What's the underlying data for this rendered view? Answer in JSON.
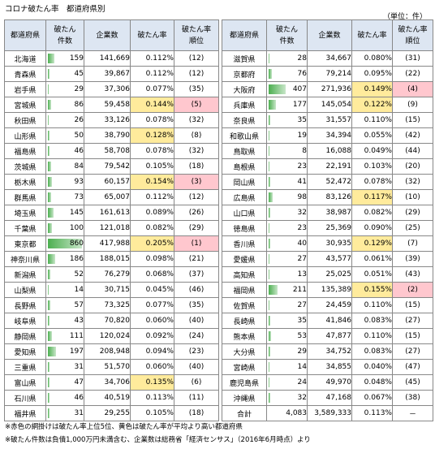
{
  "title": "コロナ破たん率　都道府県別",
  "unit": "（単位：件）",
  "headers": {
    "pref": "都道府県",
    "count_l1": "破たん",
    "count_l2": "件数",
    "companies": "企業数",
    "rate": "破たん率",
    "rank_l1": "破たん率",
    "rank_l2": "順位"
  },
  "colors": {
    "yellow": "#ffeb9c",
    "pink": "#ffc7ce",
    "header": "#dde6f2",
    "bar": "#4caf50"
  },
  "left": [
    {
      "pref": "北海道",
      "count": "159",
      "cnum": 159,
      "companies": "141,669",
      "rate": "0.112%",
      "rank": "(12)",
      "hl": ""
    },
    {
      "pref": "青森県",
      "count": "45",
      "cnum": 45,
      "companies": "39,867",
      "rate": "0.112%",
      "rank": "(12)",
      "hl": ""
    },
    {
      "pref": "岩手県",
      "count": "29",
      "cnum": 29,
      "companies": "37,306",
      "rate": "0.077%",
      "rank": "(35)",
      "hl": ""
    },
    {
      "pref": "宮城県",
      "count": "86",
      "cnum": 86,
      "companies": "59,458",
      "rate": "0.144%",
      "rank": "(5)",
      "hl": "yk"
    },
    {
      "pref": "秋田県",
      "count": "26",
      "cnum": 26,
      "companies": "33,126",
      "rate": "0.078%",
      "rank": "(32)",
      "hl": ""
    },
    {
      "pref": "山形県",
      "count": "50",
      "cnum": 50,
      "companies": "38,790",
      "rate": "0.128%",
      "rank": "(8)",
      "hl": "y"
    },
    {
      "pref": "福島県",
      "count": "46",
      "cnum": 46,
      "companies": "58,708",
      "rate": "0.078%",
      "rank": "(32)",
      "hl": ""
    },
    {
      "pref": "茨城県",
      "count": "84",
      "cnum": 84,
      "companies": "79,542",
      "rate": "0.105%",
      "rank": "(18)",
      "hl": ""
    },
    {
      "pref": "栃木県",
      "count": "93",
      "cnum": 93,
      "companies": "60,157",
      "rate": "0.154%",
      "rank": "(3)",
      "hl": "yk"
    },
    {
      "pref": "群馬県",
      "count": "73",
      "cnum": 73,
      "companies": "65,007",
      "rate": "0.112%",
      "rank": "(12)",
      "hl": ""
    },
    {
      "pref": "埼玉県",
      "count": "145",
      "cnum": 145,
      "companies": "161,613",
      "rate": "0.089%",
      "rank": "(26)",
      "hl": ""
    },
    {
      "pref": "千葉県",
      "count": "100",
      "cnum": 100,
      "companies": "121,018",
      "rate": "0.082%",
      "rank": "(29)",
      "hl": ""
    },
    {
      "pref": "東京都",
      "count": "860",
      "cnum": 860,
      "companies": "417,988",
      "rate": "0.205%",
      "rank": "(1)",
      "hl": "yk"
    },
    {
      "pref": "神奈川県",
      "count": "186",
      "cnum": 186,
      "companies": "188,015",
      "rate": "0.098%",
      "rank": "(21)",
      "hl": ""
    },
    {
      "pref": "新潟県",
      "count": "52",
      "cnum": 52,
      "companies": "76,279",
      "rate": "0.068%",
      "rank": "(37)",
      "hl": ""
    },
    {
      "pref": "山梨県",
      "count": "14",
      "cnum": 14,
      "companies": "30,715",
      "rate": "0.045%",
      "rank": "(46)",
      "hl": ""
    },
    {
      "pref": "長野県",
      "count": "57",
      "cnum": 57,
      "companies": "73,325",
      "rate": "0.077%",
      "rank": "(35)",
      "hl": ""
    },
    {
      "pref": "岐阜県",
      "count": "43",
      "cnum": 43,
      "companies": "70,820",
      "rate": "0.060%",
      "rank": "(40)",
      "hl": ""
    },
    {
      "pref": "静岡県",
      "count": "111",
      "cnum": 111,
      "companies": "120,024",
      "rate": "0.092%",
      "rank": "(24)",
      "hl": ""
    },
    {
      "pref": "愛知県",
      "count": "197",
      "cnum": 197,
      "companies": "208,948",
      "rate": "0.094%",
      "rank": "(23)",
      "hl": ""
    },
    {
      "pref": "三重県",
      "count": "31",
      "cnum": 31,
      "companies": "51,570",
      "rate": "0.060%",
      "rank": "(40)",
      "hl": ""
    },
    {
      "pref": "富山県",
      "count": "47",
      "cnum": 47,
      "companies": "34,706",
      "rate": "0.135%",
      "rank": "(6)",
      "hl": "y"
    },
    {
      "pref": "石川県",
      "count": "46",
      "cnum": 46,
      "companies": "40,519",
      "rate": "0.113%",
      "rank": "(11)",
      "hl": ""
    },
    {
      "pref": "福井県",
      "count": "31",
      "cnum": 31,
      "companies": "29,255",
      "rate": "0.105%",
      "rank": "(18)",
      "hl": ""
    }
  ],
  "right": [
    {
      "pref": "滋賀県",
      "count": "28",
      "cnum": 28,
      "companies": "34,667",
      "rate": "0.080%",
      "rank": "(31)",
      "hl": ""
    },
    {
      "pref": "京都府",
      "count": "76",
      "cnum": 76,
      "companies": "79,214",
      "rate": "0.095%",
      "rank": "(22)",
      "hl": ""
    },
    {
      "pref": "大阪府",
      "count": "407",
      "cnum": 407,
      "companies": "271,936",
      "rate": "0.149%",
      "rank": "(4)",
      "hl": "yk"
    },
    {
      "pref": "兵庫県",
      "count": "177",
      "cnum": 177,
      "companies": "145,054",
      "rate": "0.122%",
      "rank": "(9)",
      "hl": "y"
    },
    {
      "pref": "奈良県",
      "count": "35",
      "cnum": 35,
      "companies": "31,557",
      "rate": "0.110%",
      "rank": "(15)",
      "hl": ""
    },
    {
      "pref": "和歌山県",
      "count": "19",
      "cnum": 19,
      "companies": "34,394",
      "rate": "0.055%",
      "rank": "(42)",
      "hl": ""
    },
    {
      "pref": "鳥取県",
      "count": "8",
      "cnum": 8,
      "companies": "16,088",
      "rate": "0.049%",
      "rank": "(44)",
      "hl": ""
    },
    {
      "pref": "島根県",
      "count": "23",
      "cnum": 23,
      "companies": "22,191",
      "rate": "0.103%",
      "rank": "(20)",
      "hl": ""
    },
    {
      "pref": "岡山県",
      "count": "41",
      "cnum": 41,
      "companies": "52,472",
      "rate": "0.078%",
      "rank": "(32)",
      "hl": ""
    },
    {
      "pref": "広島県",
      "count": "98",
      "cnum": 98,
      "companies": "83,126",
      "rate": "0.117%",
      "rank": "(10)",
      "hl": "y"
    },
    {
      "pref": "山口県",
      "count": "32",
      "cnum": 32,
      "companies": "38,987",
      "rate": "0.082%",
      "rank": "(29)",
      "hl": ""
    },
    {
      "pref": "徳島県",
      "count": "23",
      "cnum": 23,
      "companies": "25,369",
      "rate": "0.090%",
      "rank": "(25)",
      "hl": ""
    },
    {
      "pref": "香川県",
      "count": "40",
      "cnum": 40,
      "companies": "30,935",
      "rate": "0.129%",
      "rank": "(7)",
      "hl": "y"
    },
    {
      "pref": "愛媛県",
      "count": "27",
      "cnum": 27,
      "companies": "43,577",
      "rate": "0.061%",
      "rank": "(39)",
      "hl": ""
    },
    {
      "pref": "高知県",
      "count": "13",
      "cnum": 13,
      "companies": "25,025",
      "rate": "0.051%",
      "rank": "(43)",
      "hl": ""
    },
    {
      "pref": "福岡県",
      "count": "211",
      "cnum": 211,
      "companies": "135,389",
      "rate": "0.155%",
      "rank": "(2)",
      "hl": "yk"
    },
    {
      "pref": "佐賀県",
      "count": "27",
      "cnum": 27,
      "companies": "24,459",
      "rate": "0.110%",
      "rank": "(15)",
      "hl": ""
    },
    {
      "pref": "長崎県",
      "count": "35",
      "cnum": 35,
      "companies": "41,846",
      "rate": "0.083%",
      "rank": "(27)",
      "hl": ""
    },
    {
      "pref": "熊本県",
      "count": "53",
      "cnum": 53,
      "companies": "47,877",
      "rate": "0.110%",
      "rank": "(15)",
      "hl": ""
    },
    {
      "pref": "大分県",
      "count": "29",
      "cnum": 29,
      "companies": "34,752",
      "rate": "0.083%",
      "rank": "(27)",
      "hl": ""
    },
    {
      "pref": "宮崎県",
      "count": "14",
      "cnum": 14,
      "companies": "34,855",
      "rate": "0.040%",
      "rank": "(47)",
      "hl": ""
    },
    {
      "pref": "鹿児島県",
      "count": "24",
      "cnum": 24,
      "companies": "49,970",
      "rate": "0.048%",
      "rank": "(45)",
      "hl": ""
    },
    {
      "pref": "沖縄県",
      "count": "32",
      "cnum": 32,
      "companies": "47,168",
      "rate": "0.067%",
      "rank": "(38)",
      "hl": ""
    }
  ],
  "total": {
    "label": "合計",
    "count": "4,083",
    "companies": "3,589,333",
    "rate": "0.113%",
    "rank": "－"
  },
  "notes": [
    "※赤色の網掛けは破たん率上位5位、黄色は破たん率が平均より高い都道府県",
    "※破たん件数は負債1,000万円未満含む、企業数は総務省「経済センサス」（2016年6月時点）より"
  ]
}
